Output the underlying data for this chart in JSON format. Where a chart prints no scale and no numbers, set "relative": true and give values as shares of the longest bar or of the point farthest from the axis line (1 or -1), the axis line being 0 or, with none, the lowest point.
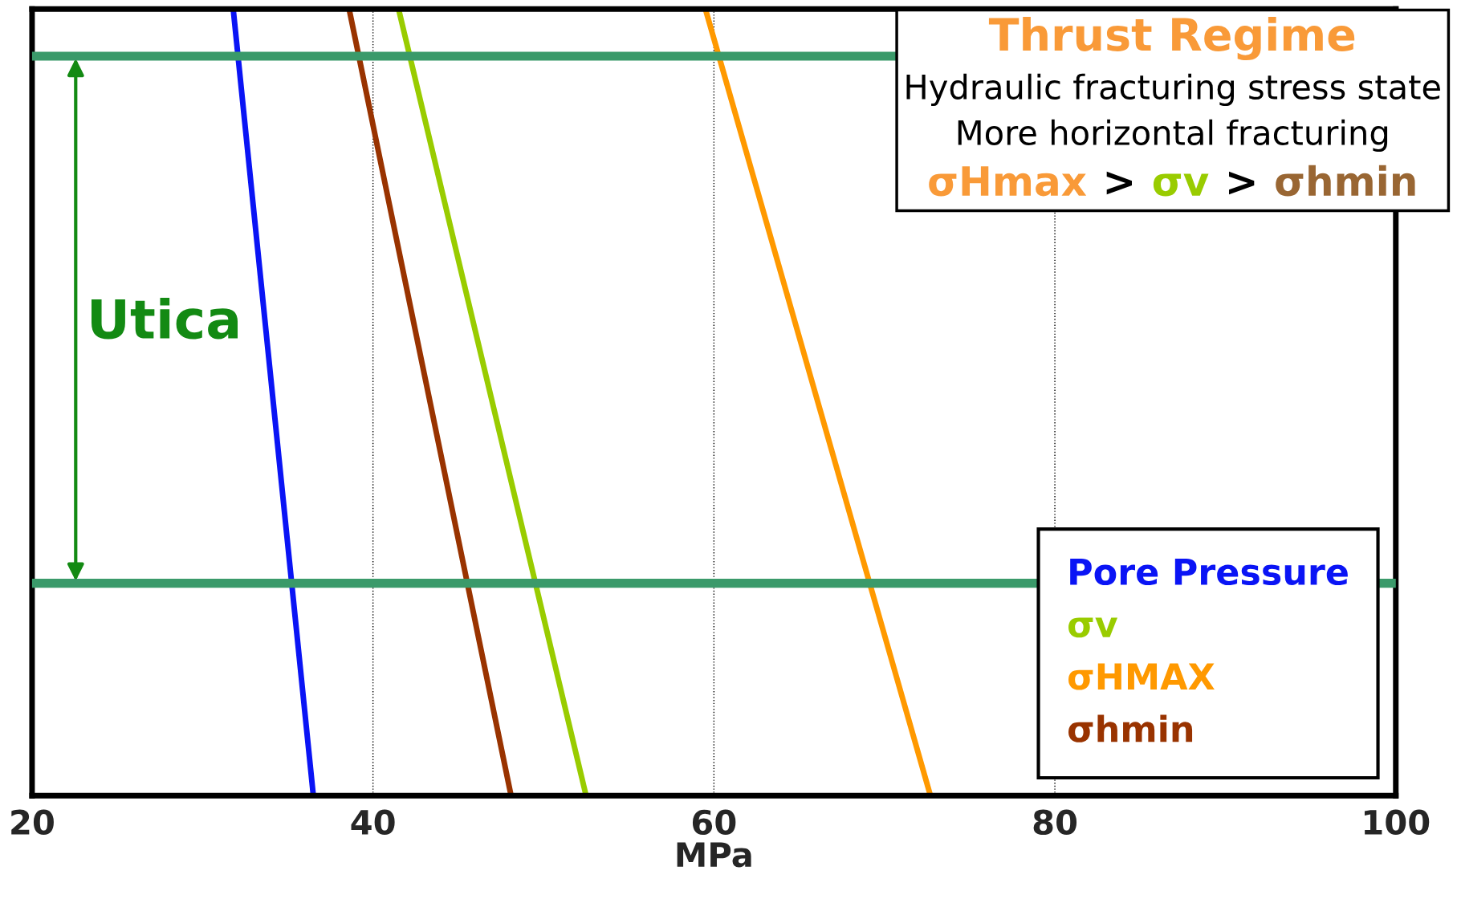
{
  "chart_data": {
    "type": "line",
    "relative": true,
    "xlabel": "MPa",
    "xlim": [
      20,
      100
    ],
    "xticks": [
      20,
      40,
      60,
      80,
      100
    ],
    "grid": "x",
    "legend": "bottom right",
    "marker": "none",
    "line_style": "solid",
    "series": [
      {
        "name": "Pore Pressure",
        "color": "#0a14f5",
        "x": [
          31.8,
          36.5
        ],
        "values": [
          1,
          0
        ]
      },
      {
        "name": "σv",
        "color": "#99cc00",
        "x": [
          41.5,
          52.5
        ],
        "values": [
          1,
          0
        ]
      },
      {
        "name": "σHMAX",
        "color": "#ff9900",
        "x": [
          59.5,
          72.7
        ],
        "values": [
          1,
          0
        ]
      },
      {
        "name": "σhmin",
        "color": "#993300",
        "x": [
          38.6,
          48.1
        ],
        "values": [
          1,
          0
        ]
      }
    ],
    "ref_lines": [
      {
        "axis": "y",
        "value": 0.94,
        "color": "#3a9a6a"
      },
      {
        "axis": "y",
        "value": 0.27,
        "color": "#3a9a6a"
      }
    ],
    "annotations": [
      "Utica",
      "Thrust Regime",
      "Hydraulic fracturing stress state",
      "More horizontal fracturing",
      "σHmax",
      ">",
      "σv",
      ">",
      "σhmin"
    ]
  }
}
